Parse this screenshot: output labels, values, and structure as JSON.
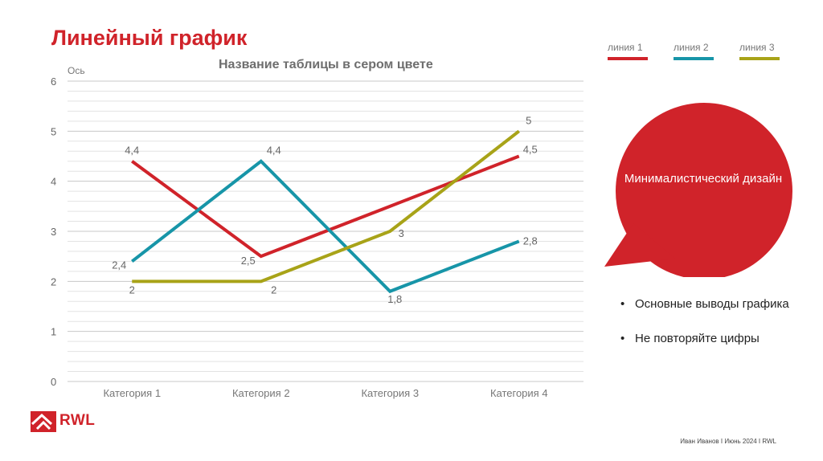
{
  "slide": {
    "title": "Линейный график",
    "footer": "Иван Иванов I Июнь 2024 I RWL",
    "logo_text": "RWL"
  },
  "bubble": {
    "text": "Минималистический дизайн",
    "color": "#d0232a"
  },
  "bullets": [
    "Основные выводы графика",
    "Не повторяйте цифры"
  ],
  "legend": [
    {
      "label": "линия 1",
      "color": "#d0232a"
    },
    {
      "label": "линия 2",
      "color": "#1795a8"
    },
    {
      "label": "линия 3",
      "color": "#a8a318"
    }
  ],
  "chart_data": {
    "type": "line",
    "title": "Название таблицы в сером цвете",
    "ylabel": "Ось",
    "xlabel": "",
    "categories": [
      "Категория 1",
      "Категория 2",
      "Категория 3",
      "Категория 4"
    ],
    "ylim": [
      0,
      6
    ],
    "yticks": [
      0,
      1,
      2,
      3,
      4,
      5,
      6
    ],
    "grid": true,
    "legend_position": "top-right",
    "series": [
      {
        "name": "линия 1",
        "color": "#d0232a",
        "values": [
          4.4,
          2.5,
          3.5,
          4.5
        ],
        "labels": [
          "4,4",
          "2,5",
          "",
          "4,5"
        ]
      },
      {
        "name": "линия 2",
        "color": "#1795a8",
        "values": [
          2.4,
          4.4,
          1.8,
          2.8
        ],
        "labels": [
          "2,4",
          "4,4",
          "1,8",
          "2,8"
        ]
      },
      {
        "name": "линия 3",
        "color": "#a8a318",
        "values": [
          2,
          2,
          3,
          5
        ],
        "labels": [
          "2",
          "2",
          "3",
          "5"
        ]
      }
    ]
  }
}
